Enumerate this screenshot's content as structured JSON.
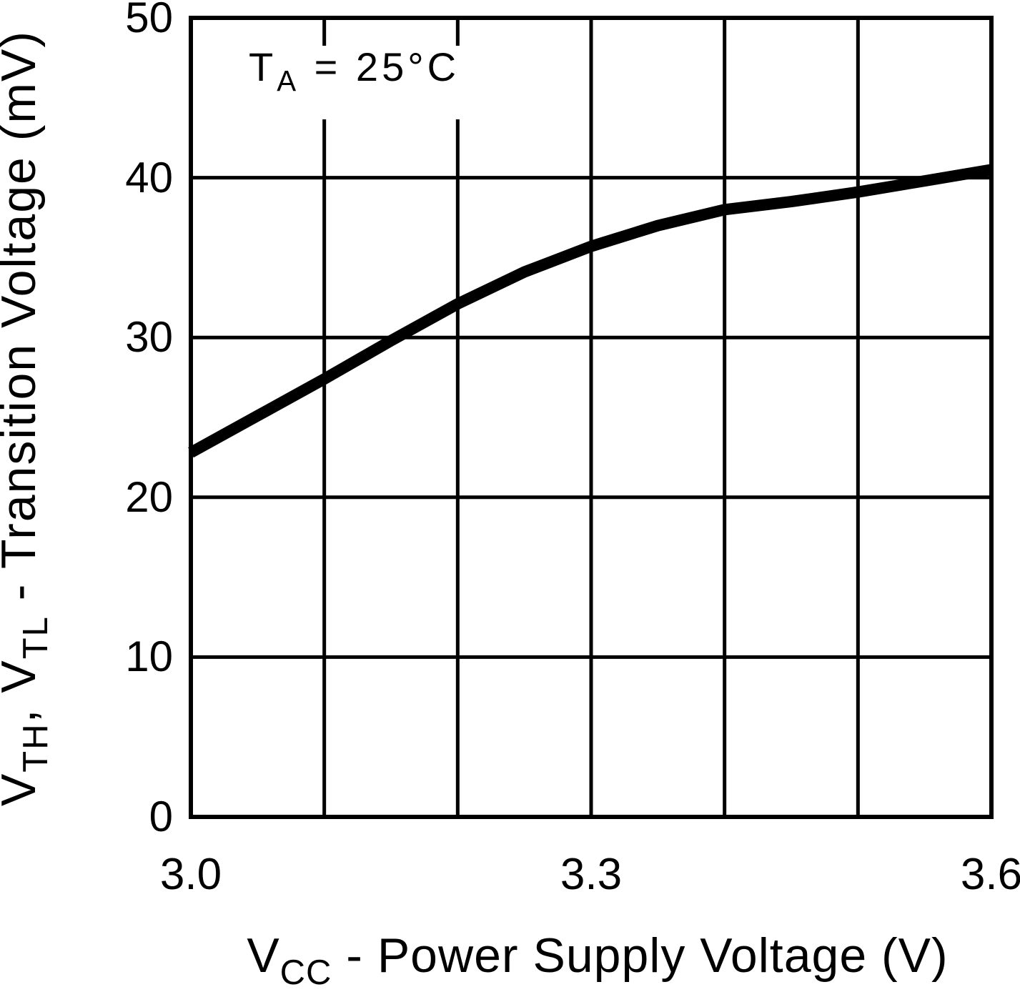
{
  "figure": {
    "annotation": {
      "main": "T",
      "sub": "A",
      "rest": " = 25°C"
    },
    "xlabel": {
      "p1": "V",
      "s1": "CC",
      "p2": " - Power Supply Voltage (V)"
    },
    "ylabel": {
      "p1": "V",
      "s1": "TH",
      "p2": ", V",
      "s2": "TL",
      "p3": " - Transition Voltage (mV)"
    }
  },
  "chart_data": {
    "type": "line",
    "title": "",
    "annotation": "TA = 25°C",
    "xlabel": "VCC - Power Supply Voltage (V)",
    "ylabel": "VTH, VTL - Transition Voltage (mV)",
    "xlim": [
      3.0,
      3.6
    ],
    "ylim": [
      0,
      50
    ],
    "xgrid_step": 0.1,
    "ygrid_step": 10,
    "grid": true,
    "legend": "none",
    "line_color": "#000000",
    "background_color": "#ffffff",
    "xticks": {
      "values": [
        3.0,
        3.3,
        3.6
      ],
      "labels": [
        "3.0",
        "3.3",
        "3.6"
      ]
    },
    "yticks": {
      "values": [
        0,
        10,
        20,
        30,
        40,
        50
      ],
      "labels": [
        "0",
        "10",
        "20",
        "30",
        "40",
        "50"
      ]
    },
    "x": [
      3.0,
      3.05,
      3.1,
      3.15,
      3.2,
      3.25,
      3.3,
      3.35,
      3.4,
      3.45,
      3.5,
      3.55,
      3.6
    ],
    "series": [
      {
        "name": "VTH, VTL transition voltage",
        "values": [
          22.8,
          25.1,
          27.4,
          29.8,
          32.1,
          34.1,
          35.7,
          37.0,
          38.0,
          38.5,
          39.1,
          39.8,
          40.5
        ]
      }
    ]
  }
}
